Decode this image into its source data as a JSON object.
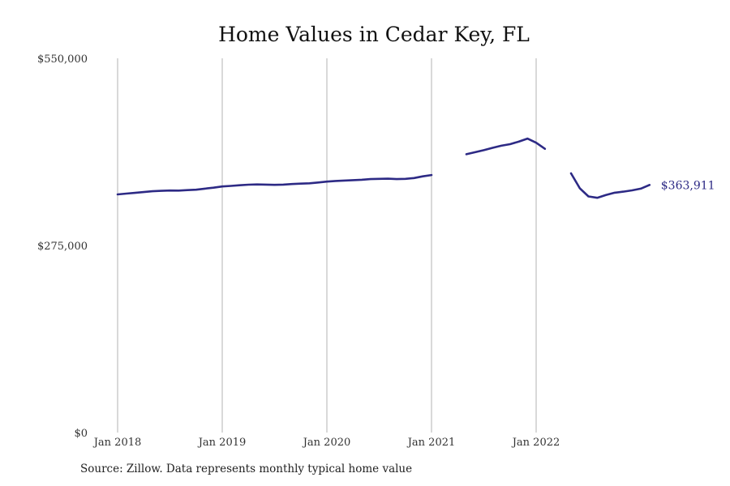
{
  "chart_data": {
    "type": "line",
    "title": "Home Values in Cedar Key, FL",
    "xlabel": "",
    "ylabel": "",
    "y_ticks": [
      "$0",
      "$275,000",
      "$550,000"
    ],
    "ylim": [
      0,
      550000
    ],
    "x_ticks": [
      "Jan 2018",
      "Jan 2019",
      "Jan 2020",
      "Jan 2021",
      "Jan 2022"
    ],
    "xlim": [
      "2018-01",
      "2022-12"
    ],
    "grid": "vertical lines at each January",
    "series": [
      {
        "color": "#2d2a85",
        "points": [
          [
            "2018-01",
            350000
          ],
          [
            "2018-02",
            351200
          ],
          [
            "2018-03",
            352300
          ],
          [
            "2018-04",
            353500
          ],
          [
            "2018-05",
            354700
          ],
          [
            "2018-06",
            355200
          ],
          [
            "2018-07",
            355700
          ],
          [
            "2018-08",
            355600
          ],
          [
            "2018-09",
            356300
          ],
          [
            "2018-10",
            356900
          ],
          [
            "2018-11",
            358400
          ],
          [
            "2018-12",
            359900
          ],
          [
            "2019-01",
            361700
          ],
          [
            "2019-02",
            362500
          ],
          [
            "2019-03",
            363500
          ],
          [
            "2019-04",
            364300
          ],
          [
            "2019-05",
            364600
          ],
          [
            "2019-06",
            364400
          ],
          [
            "2019-07",
            364100
          ],
          [
            "2019-08",
            364400
          ],
          [
            "2019-09",
            365200
          ],
          [
            "2019-10",
            365800
          ],
          [
            "2019-11",
            366300
          ],
          [
            "2019-12",
            367500
          ],
          [
            "2020-01",
            368800
          ],
          [
            "2020-02",
            369800
          ],
          [
            "2020-03",
            370300
          ],
          [
            "2020-04",
            370900
          ],
          [
            "2020-05",
            371500
          ],
          [
            "2020-06",
            372500
          ],
          [
            "2020-07",
            372800
          ],
          [
            "2020-08",
            373100
          ],
          [
            "2020-09",
            372500
          ],
          [
            "2020-10",
            372900
          ],
          [
            "2020-11",
            374000
          ],
          [
            "2020-12",
            376600
          ],
          [
            "2021-01",
            378500
          ],
          [
            "2021-02",
            null
          ],
          [
            "2021-03",
            null
          ],
          [
            "2021-04",
            null
          ],
          [
            "2021-05",
            409000
          ],
          [
            "2021-06",
            412000
          ],
          [
            "2021-07",
            415000
          ],
          [
            "2021-08",
            418500
          ],
          [
            "2021-09",
            421500
          ],
          [
            "2021-10",
            423800
          ],
          [
            "2021-11",
            427500
          ],
          [
            "2021-12",
            432000
          ],
          [
            "2022-01",
            426000
          ],
          [
            "2022-02",
            417000
          ],
          [
            "2022-03",
            null
          ],
          [
            "2022-04",
            null
          ],
          [
            "2022-05",
            381000
          ],
          [
            "2022-06",
            359000
          ],
          [
            "2022-07",
            347000
          ],
          [
            "2022-08",
            345000
          ],
          [
            "2022-09",
            349000
          ],
          [
            "2022-10",
            352500
          ],
          [
            "2022-11",
            354000
          ],
          [
            "2022-12",
            356000
          ],
          [
            "2023-01",
            358500
          ],
          [
            "2023-02",
            363911
          ]
        ]
      }
    ],
    "end_label": "$363,911",
    "source": "Source: Zillow. Data represents monthly typical home value"
  }
}
